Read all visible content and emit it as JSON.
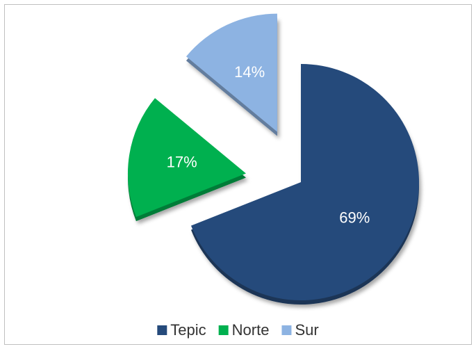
{
  "chart_data": {
    "type": "pie",
    "categories": [
      "Tepic",
      "Norte",
      "Sur"
    ],
    "values": [
      69,
      17,
      14
    ],
    "value_labels": [
      "69%",
      "17%",
      "14%"
    ],
    "colors": [
      "#254a7b",
      "#00b04f",
      "#8db3e2"
    ],
    "legend": "bottom"
  }
}
